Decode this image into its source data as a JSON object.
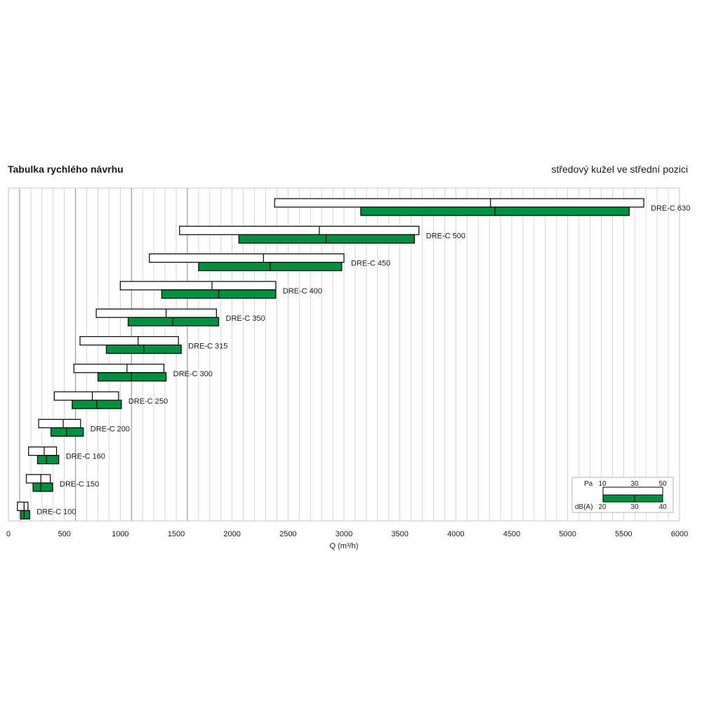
{
  "header": {
    "title": "Tabulka rychlého návrhu",
    "subtitle": "středový kužel ve střední pozici"
  },
  "chart_data": {
    "type": "bar",
    "xlabel": "Q (m³/h)",
    "xlim": [
      0,
      6000
    ],
    "xticks": [
      0,
      500,
      1000,
      1500,
      2000,
      2500,
      3000,
      3500,
      4000,
      4500,
      5000,
      5500,
      6000
    ],
    "grid": true,
    "legend_position": "bottom-right",
    "series": [
      {
        "name": "Pa",
        "color": "#ffffff",
        "scale": [
          10,
          30,
          50
        ]
      },
      {
        "name": "dB(A)",
        "color": "#009040",
        "scale": [
          20,
          30,
          40
        ]
      }
    ],
    "rows": [
      {
        "label": "DRE-C 100",
        "pa": [
          80,
          140,
          175
        ],
        "dba": [
          110,
          140,
          190
        ]
      },
      {
        "label": "DRE-C 150",
        "pa": [
          160,
          290,
          375
        ],
        "dba": [
          220,
          290,
          395
        ]
      },
      {
        "label": "DRE-C 160",
        "pa": [
          180,
          320,
          430
        ],
        "dba": [
          260,
          340,
          450
        ]
      },
      {
        "label": "DRE-C 200",
        "pa": [
          270,
          490,
          645
        ],
        "dba": [
          380,
          520,
          670
        ]
      },
      {
        "label": "DRE-C 250",
        "pa": [
          410,
          750,
          985
        ],
        "dba": [
          570,
          790,
          1010
        ]
      },
      {
        "label": "DRE-C 300",
        "pa": [
          585,
          1060,
          1390
        ],
        "dba": [
          800,
          1100,
          1410
        ]
      },
      {
        "label": "DRE-C 315",
        "pa": [
          640,
          1160,
          1520
        ],
        "dba": [
          875,
          1210,
          1545
        ]
      },
      {
        "label": "DRE-C 350",
        "pa": [
          785,
          1410,
          1860
        ],
        "dba": [
          1070,
          1470,
          1880
        ]
      },
      {
        "label": "DRE-C 400",
        "pa": [
          1000,
          1820,
          2390
        ],
        "dba": [
          1370,
          1880,
          2390
        ]
      },
      {
        "label": "DRE-C 450",
        "pa": [
          1260,
          2280,
          3000
        ],
        "dba": [
          1700,
          2340,
          2980
        ]
      },
      {
        "label": "DRE-C 500",
        "pa": [
          1530,
          2780,
          3670
        ],
        "dba": [
          2060,
          2840,
          3630
        ]
      },
      {
        "label": "DRE-C 630",
        "pa": [
          2380,
          4310,
          5680
        ],
        "dba": [
          3150,
          4350,
          5550
        ]
      }
    ],
    "legend": {
      "pa_label": "Pa",
      "pa_ticks": [
        "10",
        "30",
        "50"
      ],
      "dba_label": "dB(A)",
      "dba_ticks": [
        "20",
        "30",
        "40"
      ]
    }
  }
}
